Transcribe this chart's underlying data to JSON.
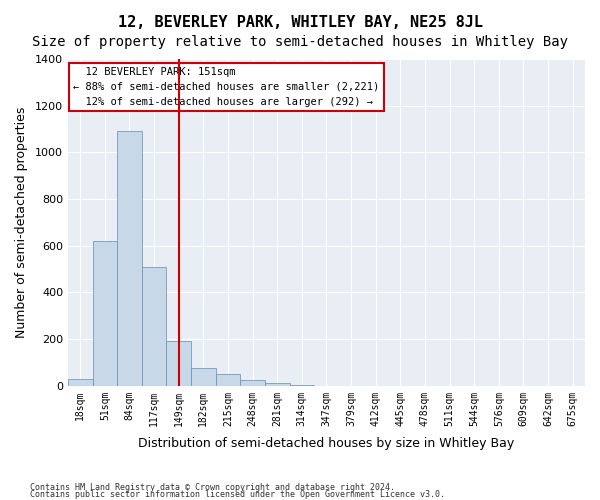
{
  "title": "12, BEVERLEY PARK, WHITLEY BAY, NE25 8JL",
  "subtitle": "Size of property relative to semi-detached houses in Whitley Bay",
  "xlabel": "Distribution of semi-detached houses by size in Whitley Bay",
  "ylabel": "Number of semi-detached properties",
  "footnote1": "Contains HM Land Registry data © Crown copyright and database right 2024.",
  "footnote2": "Contains public sector information licensed under the Open Government Licence v3.0.",
  "bin_labels": [
    "18sqm",
    "51sqm",
    "84sqm",
    "117sqm",
    "149sqm",
    "182sqm",
    "215sqm",
    "248sqm",
    "281sqm",
    "314sqm",
    "347sqm",
    "379sqm",
    "412sqm",
    "445sqm",
    "478sqm",
    "511sqm",
    "544sqm",
    "576sqm",
    "609sqm",
    "642sqm",
    "675sqm"
  ],
  "bar_values": [
    30,
    620,
    1090,
    510,
    190,
    75,
    50,
    25,
    10,
    2,
    0,
    0,
    0,
    0,
    0,
    0,
    0,
    0,
    0,
    0,
    0
  ],
  "bar_color": "#c8d8e8",
  "bar_edge_color": "#6090b0",
  "property_size": 151,
  "property_label": "12 BEVERLEY PARK: 151sqm",
  "pct_smaller": 88,
  "count_smaller": 2221,
  "pct_larger": 12,
  "count_larger": 292,
  "vline_color": "#cc0000",
  "annotation_box_color": "#cc0000",
  "ylim": [
    0,
    1400
  ],
  "yticks": [
    0,
    200,
    400,
    600,
    800,
    1000,
    1200,
    1400
  ],
  "bg_color": "#e8eef4",
  "grid_color": "#ffffff",
  "title_fontsize": 11,
  "subtitle_fontsize": 10,
  "label_fontsize": 9
}
